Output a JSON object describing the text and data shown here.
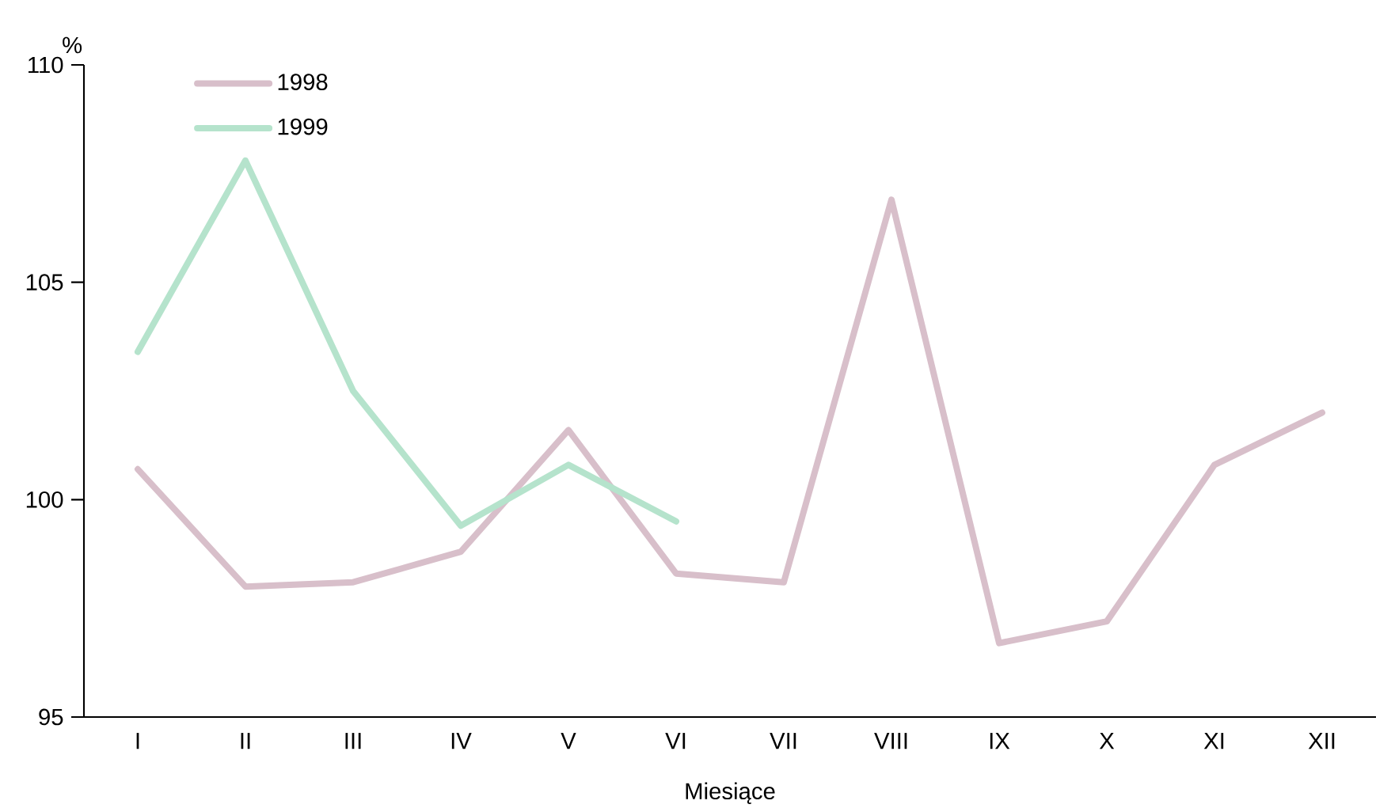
{
  "chart_data": {
    "type": "line",
    "xlabel": "Miesiące",
    "ylabel": "%",
    "categories": [
      "I",
      "II",
      "III",
      "IV",
      "V",
      "VI",
      "VII",
      "VIII",
      "IX",
      "X",
      "XI",
      "XII"
    ],
    "series": [
      {
        "name": "1998",
        "color": "#d8bfca",
        "values": [
          100.7,
          98.0,
          98.1,
          98.8,
          101.6,
          98.3,
          98.1,
          106.9,
          96.7,
          97.2,
          100.8,
          102.0
        ]
      },
      {
        "name": "1999",
        "color": "#b5e3cc",
        "values": [
          103.4,
          107.8,
          102.5,
          99.4,
          100.8,
          99.5,
          null,
          null,
          null,
          null,
          null,
          null
        ]
      }
    ],
    "ylim": [
      95,
      110
    ],
    "yticks": [
      95,
      100,
      105,
      110
    ],
    "grid": false,
    "legend": "top left",
    "marker": "none",
    "line_style": "solid"
  }
}
